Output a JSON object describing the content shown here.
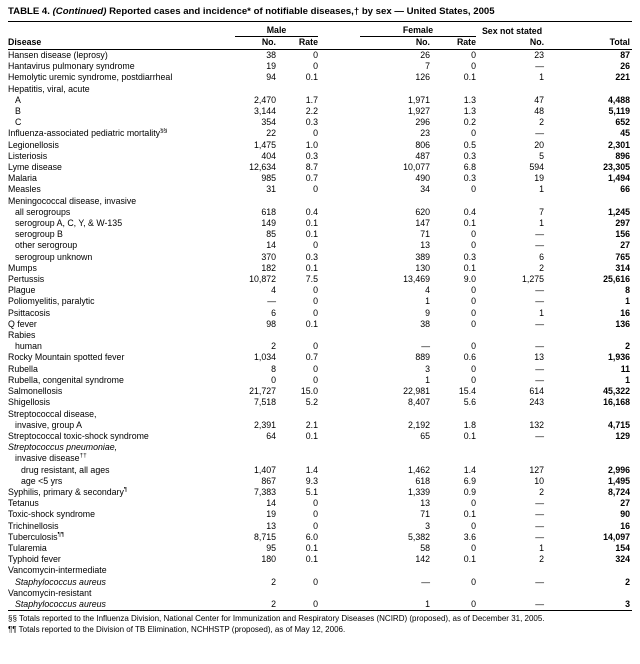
{
  "header": {
    "prefix": "TABLE 4.",
    "continued": " (Continued) ",
    "rest": "Reported cases and incidence* of notifiable diseases,† by sex — United States, 2005"
  },
  "table": {
    "group_headers": [
      "Male",
      "Female",
      "Sex not stated"
    ],
    "col_headers": [
      "Disease",
      "No.",
      "Rate",
      "No.",
      "Rate",
      "No.",
      "Total"
    ],
    "rows": [
      {
        "disease": "Hansen disease (leprosy)",
        "indent": 0,
        "italic": false,
        "cells": [
          "38",
          "0",
          "26",
          "0",
          "23",
          "87"
        ]
      },
      {
        "disease": "Hantavirus pulmonary syndrome",
        "indent": 0,
        "italic": false,
        "cells": [
          "19",
          "0",
          "7",
          "0",
          "—",
          "26"
        ]
      },
      {
        "disease": "Hemolytic uremic syndrome, postdiarrheal",
        "indent": 0,
        "italic": false,
        "cells": [
          "94",
          "0.1",
          "126",
          "0.1",
          "1",
          "221"
        ]
      },
      {
        "disease": "Hepatitis, viral, acute",
        "indent": 0,
        "italic": false,
        "cells": [
          "",
          "",
          "",
          "",
          "",
          ""
        ]
      },
      {
        "disease": "A",
        "indent": 1,
        "italic": false,
        "cells": [
          "2,470",
          "1.7",
          "1,971",
          "1.3",
          "47",
          "4,488"
        ]
      },
      {
        "disease": "B",
        "indent": 1,
        "italic": false,
        "cells": [
          "3,144",
          "2.2",
          "1,927",
          "1.3",
          "48",
          "5,119"
        ]
      },
      {
        "disease": "C",
        "indent": 1,
        "italic": false,
        "cells": [
          "354",
          "0.3",
          "296",
          "0.2",
          "2",
          "652"
        ]
      },
      {
        "disease": "Influenza-associated pediatric mortality§§",
        "indent": 0,
        "italic": false,
        "cells": [
          "22",
          "0",
          "23",
          "0",
          "—",
          "45"
        ]
      },
      {
        "disease": "Legionellosis",
        "indent": 0,
        "italic": false,
        "cells": [
          "1,475",
          "1.0",
          "806",
          "0.5",
          "20",
          "2,301"
        ]
      },
      {
        "disease": "Listeriosis",
        "indent": 0,
        "italic": false,
        "cells": [
          "404",
          "0.3",
          "487",
          "0.3",
          "5",
          "896"
        ]
      },
      {
        "disease": "Lyme disease",
        "indent": 0,
        "italic": false,
        "cells": [
          "12,634",
          "8.7",
          "10,077",
          "6.8",
          "594",
          "23,305"
        ]
      },
      {
        "disease": "Malaria",
        "indent": 0,
        "italic": false,
        "cells": [
          "985",
          "0.7",
          "490",
          "0.3",
          "19",
          "1,494"
        ]
      },
      {
        "disease": "Measles",
        "indent": 0,
        "italic": false,
        "cells": [
          "31",
          "0",
          "34",
          "0",
          "1",
          "66"
        ]
      },
      {
        "disease": "Meningococcal disease, invasive",
        "indent": 0,
        "italic": false,
        "cells": [
          "",
          "",
          "",
          "",
          "",
          ""
        ]
      },
      {
        "disease": "all serogroups",
        "indent": 1,
        "italic": false,
        "cells": [
          "618",
          "0.4",
          "620",
          "0.4",
          "7",
          "1,245"
        ]
      },
      {
        "disease": "serogroup A, C, Y, & W-135",
        "indent": 1,
        "italic": false,
        "cells": [
          "149",
          "0.1",
          "147",
          "0.1",
          "1",
          "297"
        ]
      },
      {
        "disease": "serogroup B",
        "indent": 1,
        "italic": false,
        "cells": [
          "85",
          "0.1",
          "71",
          "0",
          "—",
          "156"
        ]
      },
      {
        "disease": "other serogroup",
        "indent": 1,
        "italic": false,
        "cells": [
          "14",
          "0",
          "13",
          "0",
          "—",
          "27"
        ]
      },
      {
        "disease": "serogroup unknown",
        "indent": 1,
        "italic": false,
        "cells": [
          "370",
          "0.3",
          "389",
          "0.3",
          "6",
          "765"
        ]
      },
      {
        "disease": "Mumps",
        "indent": 0,
        "italic": false,
        "cells": [
          "182",
          "0.1",
          "130",
          "0.1",
          "2",
          "314"
        ]
      },
      {
        "disease": "Pertussis",
        "indent": 0,
        "italic": false,
        "cells": [
          "10,872",
          "7.5",
          "13,469",
          "9.0",
          "1,275",
          "25,616"
        ]
      },
      {
        "disease": "Plague",
        "indent": 0,
        "italic": false,
        "cells": [
          "4",
          "0",
          "4",
          "0",
          "—",
          "8"
        ]
      },
      {
        "disease": "Poliomyelitis, paralytic",
        "indent": 0,
        "italic": false,
        "cells": [
          "—",
          "0",
          "1",
          "0",
          "—",
          "1"
        ]
      },
      {
        "disease": "Psittacosis",
        "indent": 0,
        "italic": false,
        "cells": [
          "6",
          "0",
          "9",
          "0",
          "1",
          "16"
        ]
      },
      {
        "disease": "Q fever",
        "indent": 0,
        "italic": false,
        "cells": [
          "98",
          "0.1",
          "38",
          "0",
          "—",
          "136"
        ]
      },
      {
        "disease": "Rabies",
        "indent": 0,
        "italic": false,
        "cells": [
          "",
          "",
          "",
          "",
          "",
          ""
        ]
      },
      {
        "disease": "human",
        "indent": 1,
        "italic": false,
        "cells": [
          "2",
          "0",
          "—",
          "0",
          "—",
          "2"
        ]
      },
      {
        "disease": "Rocky Mountain spotted fever",
        "indent": 0,
        "italic": false,
        "cells": [
          "1,034",
          "0.7",
          "889",
          "0.6",
          "13",
          "1,936"
        ]
      },
      {
        "disease": "Rubella",
        "indent": 0,
        "italic": false,
        "cells": [
          "8",
          "0",
          "3",
          "0",
          "—",
          "11"
        ]
      },
      {
        "disease": "Rubella, congenital syndrome",
        "indent": 0,
        "italic": false,
        "cells": [
          "0",
          "0",
          "1",
          "0",
          "—",
          "1"
        ]
      },
      {
        "disease": "Salmonellosis",
        "indent": 0,
        "italic": false,
        "cells": [
          "21,727",
          "15.0",
          "22,981",
          "15.4",
          "614",
          "45,322"
        ]
      },
      {
        "disease": "Shigellosis",
        "indent": 0,
        "italic": false,
        "cells": [
          "7,518",
          "5.2",
          "8,407",
          "5.6",
          "243",
          "16,168"
        ]
      },
      {
        "disease": "Streptococcal disease,",
        "indent": 0,
        "italic": false,
        "cells": [
          "",
          "",
          "",
          "",
          "",
          ""
        ]
      },
      {
        "disease": "invasive, group A",
        "indent": 1,
        "italic": false,
        "cells": [
          "2,391",
          "2.1",
          "2,192",
          "1.8",
          "132",
          "4,715"
        ]
      },
      {
        "disease": "Streptococcal toxic-shock syndrome",
        "indent": 0,
        "italic": false,
        "cells": [
          "64",
          "0.1",
          "65",
          "0.1",
          "—",
          "129"
        ]
      },
      {
        "disease": "Streptococcus pneumoniae,",
        "indent": 0,
        "italic": true,
        "cells": [
          "",
          "",
          "",
          "",
          "",
          ""
        ]
      },
      {
        "disease": "invasive disease††",
        "indent": 1,
        "italic": false,
        "cells": [
          "",
          "",
          "",
          "",
          "",
          ""
        ]
      },
      {
        "disease": "drug resistant, all ages",
        "indent": 2,
        "italic": false,
        "cells": [
          "1,407",
          "1.4",
          "1,462",
          "1.4",
          "127",
          "2,996"
        ]
      },
      {
        "disease": "age <5 yrs",
        "indent": 2,
        "italic": false,
        "cells": [
          "867",
          "9.3",
          "618",
          "6.9",
          "10",
          "1,495"
        ]
      },
      {
        "disease": "Syphilis, primary & secondary¶",
        "indent": 0,
        "italic": false,
        "cells": [
          "7,383",
          "5.1",
          "1,339",
          "0.9",
          "2",
          "8,724"
        ]
      },
      {
        "disease": "Tetanus",
        "indent": 0,
        "italic": false,
        "cells": [
          "14",
          "0",
          "13",
          "0",
          "—",
          "27"
        ]
      },
      {
        "disease": "Toxic-shock syndrome",
        "indent": 0,
        "italic": false,
        "cells": [
          "19",
          "0",
          "71",
          "0.1",
          "—",
          "90"
        ]
      },
      {
        "disease": "Trichinellosis",
        "indent": 0,
        "italic": false,
        "cells": [
          "13",
          "0",
          "3",
          "0",
          "—",
          "16"
        ]
      },
      {
        "disease": "Tuberculosis¶¶",
        "indent": 0,
        "italic": false,
        "cells": [
          "8,715",
          "6.0",
          "5,382",
          "3.6",
          "—",
          "14,097"
        ]
      },
      {
        "disease": "Tularemia",
        "indent": 0,
        "italic": false,
        "cells": [
          "95",
          "0.1",
          "58",
          "0",
          "1",
          "154"
        ]
      },
      {
        "disease": "Typhoid fever",
        "indent": 0,
        "italic": false,
        "cells": [
          "180",
          "0.1",
          "142",
          "0.1",
          "2",
          "324"
        ]
      },
      {
        "disease": "Vancomycin-intermediate",
        "indent": 0,
        "italic": false,
        "cells": [
          "",
          "",
          "",
          "",
          "",
          ""
        ]
      },
      {
        "disease": "Staphylococcus aureus",
        "indent": 1,
        "italic": true,
        "cells": [
          "2",
          "0",
          "—",
          "0",
          "—",
          "2"
        ]
      },
      {
        "disease": "Vancomycin-resistant",
        "indent": 0,
        "italic": false,
        "cells": [
          "",
          "",
          "",
          "",
          "",
          ""
        ]
      },
      {
        "disease": "Staphylococcus aureus",
        "indent": 1,
        "italic": true,
        "cells": [
          "2",
          "0",
          "1",
          "0",
          "—",
          "3"
        ]
      }
    ]
  },
  "footnotes": [
    "§§ Totals reported to the Influenza Division, National Center for Immunization and Respiratory Diseases (NCIRD) (proposed), as of December 31, 2005.",
    "¶¶ Totals reported to the Division of TB Elimination, NCHHSTP (proposed), as of May 12, 2006."
  ]
}
